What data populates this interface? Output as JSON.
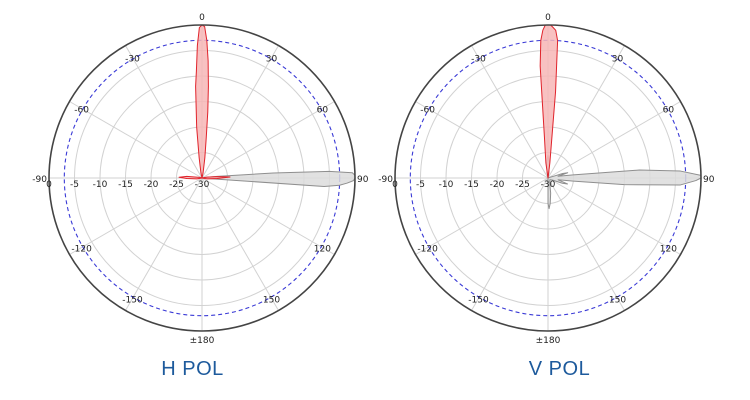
{
  "chart_data": [
    {
      "type": "polar",
      "title": "H POL",
      "angle_unit": "deg",
      "radial_axis": {
        "unit": "dB",
        "range": [
          -30,
          0
        ],
        "tick_labels": [
          "0",
          "-5",
          "-10",
          "-15",
          "-20",
          "-25",
          "-30"
        ],
        "reference_ring_dashed": -3
      },
      "angular_tick_labels": [
        "0",
        "30",
        "60",
        "90",
        "120",
        "150",
        "±180",
        "-150",
        "-120",
        "-90",
        "-60",
        "-30"
      ],
      "grid": true,
      "colors": {
        "series_red_fill": "#f7b6b6",
        "series_red_stroke": "#e0232b",
        "series_gray_fill": "#dcdcdc",
        "series_gray_stroke": "#8f8f8f",
        "dashed_ring": "#3a3ad6",
        "caption": "#1d5a9c"
      },
      "series": [
        {
          "color": "red",
          "points": [
            [
              -175,
              -30
            ],
            [
              -150,
              -30
            ],
            [
              -120,
              -30
            ],
            [
              -100,
              -29
            ],
            [
              -92,
              -27
            ],
            [
              -88,
              -25.5
            ],
            [
              -84,
              -27
            ],
            [
              -75,
              -29.5
            ],
            [
              -60,
              -30
            ],
            [
              -40,
              -30
            ],
            [
              -20,
              -30
            ],
            [
              -12,
              -29
            ],
            [
              -8,
              -26
            ],
            [
              -6,
              -20
            ],
            [
              -4,
              -12
            ],
            [
              -3,
              -9
            ],
            [
              -2,
              -4
            ],
            [
              -1,
              -0.5
            ],
            [
              0,
              0
            ],
            [
              1,
              -0.3
            ],
            [
              2,
              -3
            ],
            [
              3,
              -7
            ],
            [
              4,
              -12
            ],
            [
              5,
              -17
            ],
            [
              6,
              -22
            ],
            [
              8,
              -26
            ],
            [
              12,
              -29
            ],
            [
              30,
              -30
            ],
            [
              60,
              -30
            ],
            [
              80,
              -29
            ],
            [
              85,
              -27
            ],
            [
              88,
              -24.5
            ],
            [
              92,
              -27
            ],
            [
              100,
              -29
            ],
            [
              120,
              -30
            ],
            [
              150,
              -30
            ],
            [
              175,
              -30
            ]
          ]
        },
        {
          "color": "gray",
          "points": [
            [
              -175,
              -30
            ],
            [
              -150,
              -30
            ],
            [
              -120,
              -30
            ],
            [
              -100,
              -30
            ],
            [
              -60,
              -30
            ],
            [
              -20,
              -30
            ],
            [
              0,
              -30
            ],
            [
              30,
              -30
            ],
            [
              60,
              -30
            ],
            [
              80,
              -29.5
            ],
            [
              84,
              -27
            ],
            [
              86,
              -16
            ],
            [
              87,
              -5
            ],
            [
              88,
              -0.5
            ],
            [
              89,
              0
            ],
            [
              90,
              0
            ],
            [
              91,
              -0.3
            ],
            [
              92,
              -1.5
            ],
            [
              93,
              -3
            ],
            [
              94,
              -6
            ],
            [
              95,
              -29
            ],
            [
              100,
              -30
            ],
            [
              120,
              -30
            ],
            [
              150,
              -30
            ],
            [
              175,
              -30
            ]
          ]
        }
      ]
    },
    {
      "type": "polar",
      "title": "V POL",
      "angle_unit": "deg",
      "radial_axis": {
        "unit": "dB",
        "range": [
          -30,
          0
        ],
        "tick_labels": [
          "0",
          "-5",
          "-10",
          "-15",
          "-20",
          "-25",
          "-30"
        ],
        "reference_ring_dashed": -3
      },
      "angular_tick_labels": [
        "0",
        "30",
        "60",
        "90",
        "120",
        "150",
        "±180",
        "-150",
        "-120",
        "-90",
        "-60",
        "-30"
      ],
      "grid": true,
      "colors": {
        "series_red_fill": "#f7b6b6",
        "series_red_stroke": "#e0232b",
        "series_gray_fill": "#dcdcdc",
        "series_gray_stroke": "#8f8f8f",
        "dashed_ring": "#3a3ad6",
        "caption": "#1d5a9c"
      },
      "series": [
        {
          "color": "red",
          "points": [
            [
              -180,
              -30
            ],
            [
              -120,
              -30
            ],
            [
              -60,
              -30
            ],
            [
              -20,
              -30
            ],
            [
              -8,
              -27
            ],
            [
              -5,
              -22
            ],
            [
              -4,
              -8
            ],
            [
              -3,
              -3
            ],
            [
              -2,
              -1
            ],
            [
              -1,
              0
            ],
            [
              1,
              0
            ],
            [
              2,
              -0.5
            ],
            [
              3,
              -1
            ],
            [
              4,
              -3
            ],
            [
              5,
              -13
            ],
            [
              7,
              -27
            ],
            [
              12,
              -30
            ],
            [
              60,
              -30
            ],
            [
              120,
              -30
            ],
            [
              180,
              -30
            ]
          ]
        },
        {
          "color": "gray",
          "points": [
            [
              -180,
              -30
            ],
            [
              -90,
              -30
            ],
            [
              -40,
              -30
            ],
            [
              -10,
              -29
            ],
            [
              -5,
              -27
            ],
            [
              0,
              -25.5
            ],
            [
              5,
              -27
            ],
            [
              10,
              -29
            ],
            [
              40,
              -30
            ],
            [
              70,
              -30
            ],
            [
              72,
              -29.5
            ],
            [
              73,
              -27
            ],
            [
              75,
              -26
            ],
            [
              80,
              -28
            ],
            [
              83,
              -25
            ],
            [
              85,
              -12
            ],
            [
              87,
              -4
            ],
            [
              89,
              0
            ],
            [
              90,
              0
            ],
            [
              91,
              -1
            ],
            [
              93,
              -4
            ],
            [
              95,
              -15
            ],
            [
              97,
              -25
            ],
            [
              100,
              -28
            ],
            [
              107,
              -26
            ],
            [
              110,
              -27
            ],
            [
              115,
              -29
            ],
            [
              130,
              -29.5
            ],
            [
              160,
              -29
            ],
            [
              170,
              -27
            ],
            [
              175,
              -25
            ],
            [
              178,
              -24
            ],
            [
              180,
              -25
            ]
          ]
        }
      ]
    }
  ]
}
